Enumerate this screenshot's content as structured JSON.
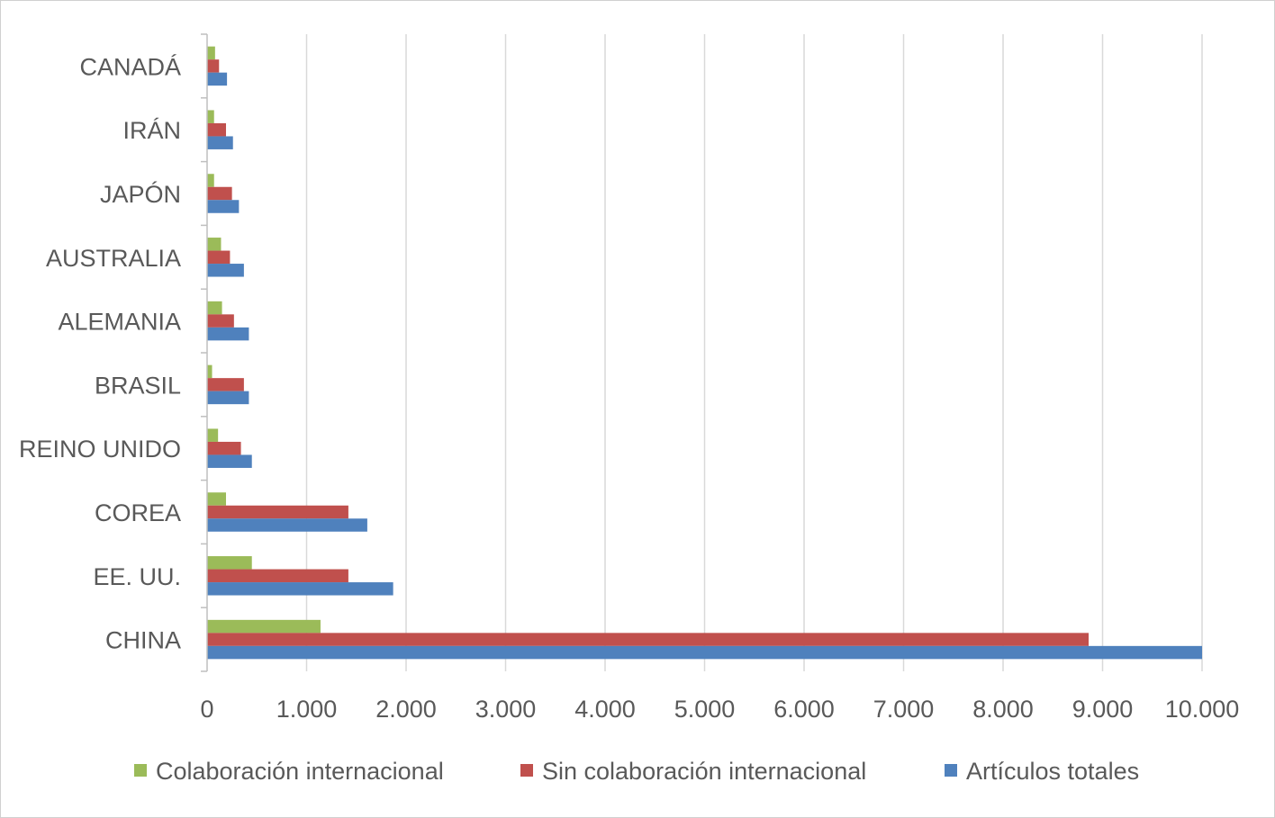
{
  "chart_data": {
    "type": "bar",
    "orientation": "horizontal",
    "categories": [
      "CHINA",
      "EE. UU.",
      "COREA",
      "REINO UNIDO",
      "BRASIL",
      "ALEMANIA",
      "AUSTRALIA",
      "JAPÓN",
      "IRÁN",
      "CANADÁ"
    ],
    "series": [
      {
        "name": "Colaboración internacional",
        "color": "#9bbb59",
        "values": [
          1140,
          450,
          190,
          110,
          50,
          150,
          140,
          70,
          70,
          80
        ]
      },
      {
        "name": "Sin colaboración internacional",
        "color": "#c0504d",
        "values": [
          8860,
          1420,
          1420,
          340,
          370,
          270,
          230,
          250,
          190,
          120
        ]
      },
      {
        "name": "Artículos totales",
        "color": "#4f81bd",
        "values": [
          10000,
          1870,
          1610,
          450,
          420,
          420,
          370,
          320,
          260,
          200
        ]
      }
    ],
    "xlim": [
      0,
      10000
    ],
    "x_ticks": [
      "0",
      "1.000",
      "2.000",
      "3.000",
      "4.000",
      "5.000",
      "6.000",
      "7.000",
      "8.000",
      "9.000",
      "10.000"
    ],
    "grid": true,
    "legend_position": "bottom",
    "legend_order": [
      "Colaboración internacional",
      "Sin colaboración internacional",
      "Artículos totales"
    ],
    "title": "",
    "xlabel": "",
    "ylabel": ""
  }
}
